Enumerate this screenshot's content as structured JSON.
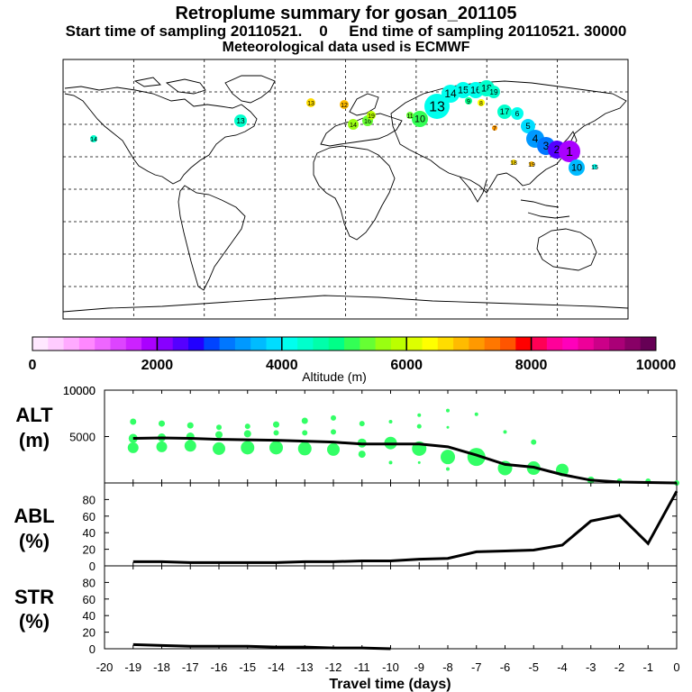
{
  "header": {
    "title": "Retroplume summary for gosan_201105",
    "sampling": "Start time of sampling 20110521.    0     End time of sampling 20110521. 30000",
    "met": "Meteorological data used is ECMWF"
  },
  "colorbar": {
    "label": "Altitude (m)",
    "ticks": [
      "0",
      "2000",
      "4000",
      "6000",
      "8000",
      "10000"
    ],
    "colors": [
      "#ffe8ff",
      "#ffccff",
      "#ffaaff",
      "#ff88ff",
      "#ee66ff",
      "#dd44ff",
      "#cc22ff",
      "#aa00ff",
      "#8800ff",
      "#5500ff",
      "#2200ff",
      "#0044ff",
      "#0077ff",
      "#0099ff",
      "#00bbff",
      "#00ddff",
      "#00ffee",
      "#00ffcc",
      "#00ffaa",
      "#00ff88",
      "#33ff55",
      "#66ff33",
      "#99ff11",
      "#bbff00",
      "#ddff00",
      "#ffff00",
      "#ffdd00",
      "#ffbb00",
      "#ff9900",
      "#ff7700",
      "#ff5500",
      "#ff0000",
      "#ff0055",
      "#ff0099",
      "#ff00bb",
      "#ee0099",
      "#cc0088",
      "#aa0077",
      "#880066",
      "#660055"
    ]
  },
  "map": {
    "markers": [
      {
        "label": "13",
        "color": "#00ffee"
      },
      {
        "label": "14",
        "color": "#00ffee"
      },
      {
        "label": "15",
        "color": "#00ffee"
      },
      {
        "label": "16",
        "color": "#00ffee"
      },
      {
        "label": "18",
        "color": "#00ffcc"
      },
      {
        "label": "19",
        "color": "#00ffcc"
      },
      {
        "label": "10",
        "color": "#33ff55"
      },
      {
        "label": "11",
        "color": "#66ff33"
      },
      {
        "label": "12",
        "color": "#ffbb00"
      },
      {
        "label": "13",
        "color": "#ffdd00"
      },
      {
        "label": "14",
        "color": "#99ff11"
      },
      {
        "label": "16",
        "color": "#66ff33"
      },
      {
        "label": "19",
        "color": "#bbff00"
      },
      {
        "label": "17",
        "color": "#00ffcc"
      },
      {
        "label": "8",
        "color": "#ffff00"
      },
      {
        "label": "7",
        "color": "#ff9900"
      },
      {
        "label": "9",
        "color": "#00ff88"
      },
      {
        "label": "6",
        "color": "#00ffee"
      },
      {
        "label": "5",
        "color": "#00ddff"
      },
      {
        "label": "4",
        "color": "#0099ff"
      },
      {
        "label": "3",
        "color": "#0077ff"
      },
      {
        "label": "2",
        "color": "#5500ff"
      },
      {
        "label": "1",
        "color": "#aa00ff"
      },
      {
        "label": "10",
        "color": "#00bbff"
      },
      {
        "label": "18",
        "color": "#ffdd00"
      },
      {
        "label": "19",
        "color": "#ffbb00"
      },
      {
        "label": "13",
        "color": "#00ffcc"
      },
      {
        "label": "14",
        "color": "#00ffcc"
      },
      {
        "label": "15",
        "color": "#00ffee"
      }
    ]
  },
  "chart_data": [
    {
      "type": "scatter",
      "title": "ALT",
      "ylabel": "(m)",
      "ylim": [
        0,
        10000
      ],
      "yticks": [
        0,
        5000,
        10000
      ],
      "ytick_labels": [
        "",
        "5000",
        "10000"
      ],
      "color": "#33ff66",
      "line": {
        "x": [
          -19,
          -18,
          -17,
          -16,
          -15,
          -14,
          -13,
          -12,
          -11,
          -10,
          -9,
          -8,
          -7,
          -6,
          -5,
          -4,
          -3,
          -2,
          -1,
          0
        ],
        "y": [
          4800,
          4850,
          4800,
          4700,
          4650,
          4600,
          4500,
          4400,
          4200,
          4200,
          4200,
          3900,
          3000,
          2000,
          1700,
          900,
          300,
          100,
          50,
          0
        ]
      },
      "points": [
        {
          "x": -19,
          "y": 6600,
          "s": 3.5
        },
        {
          "x": -19,
          "y": 4800,
          "s": 5
        },
        {
          "x": -19,
          "y": 3800,
          "s": 6
        },
        {
          "x": -18,
          "y": 6400,
          "s": 3.5
        },
        {
          "x": -18,
          "y": 4900,
          "s": 4.5
        },
        {
          "x": -18,
          "y": 3900,
          "s": 6
        },
        {
          "x": -17,
          "y": 6200,
          "s": 3.5
        },
        {
          "x": -17,
          "y": 5000,
          "s": 4.5
        },
        {
          "x": -17,
          "y": 4000,
          "s": 6.5
        },
        {
          "x": -16,
          "y": 6000,
          "s": 3
        },
        {
          "x": -16,
          "y": 5200,
          "s": 4
        },
        {
          "x": -16,
          "y": 3700,
          "s": 7
        },
        {
          "x": -15,
          "y": 6100,
          "s": 3
        },
        {
          "x": -15,
          "y": 5300,
          "s": 4
        },
        {
          "x": -15,
          "y": 3800,
          "s": 7.5
        },
        {
          "x": -14,
          "y": 6300,
          "s": 3.5
        },
        {
          "x": -14,
          "y": 5400,
          "s": 3
        },
        {
          "x": -14,
          "y": 3800,
          "s": 7.5
        },
        {
          "x": -13,
          "y": 6700,
          "s": 3.5
        },
        {
          "x": -13,
          "y": 5400,
          "s": 3
        },
        {
          "x": -13,
          "y": 3700,
          "s": 7.5
        },
        {
          "x": -12,
          "y": 7000,
          "s": 3
        },
        {
          "x": -12,
          "y": 5500,
          "s": 3
        },
        {
          "x": -12,
          "y": 3600,
          "s": 7
        },
        {
          "x": -11,
          "y": 6400,
          "s": 3
        },
        {
          "x": -11,
          "y": 4300,
          "s": 5
        },
        {
          "x": -11,
          "y": 3100,
          "s": 4
        },
        {
          "x": -10,
          "y": 6600,
          "s": 2
        },
        {
          "x": -10,
          "y": 4300,
          "s": 7
        },
        {
          "x": -10,
          "y": 2200,
          "s": 2
        },
        {
          "x": -9,
          "y": 7300,
          "s": 2
        },
        {
          "x": -9,
          "y": 6100,
          "s": 2.5
        },
        {
          "x": -9,
          "y": 3700,
          "s": 8
        },
        {
          "x": -9,
          "y": 2200,
          "s": 1.5
        },
        {
          "x": -8,
          "y": 7800,
          "s": 2
        },
        {
          "x": -8,
          "y": 6000,
          "s": 1.5
        },
        {
          "x": -8,
          "y": 2800,
          "s": 8
        },
        {
          "x": -8,
          "y": 1500,
          "s": 2
        },
        {
          "x": -7,
          "y": 7400,
          "s": 2
        },
        {
          "x": -7,
          "y": 2800,
          "s": 10
        },
        {
          "x": -6,
          "y": 5500,
          "s": 2
        },
        {
          "x": -6,
          "y": 1600,
          "s": 8
        },
        {
          "x": -5,
          "y": 4400,
          "s": 3
        },
        {
          "x": -5,
          "y": 1600,
          "s": 7.5
        },
        {
          "x": -4,
          "y": 1400,
          "s": 7
        },
        {
          "x": -3,
          "y": 300,
          "s": 4
        },
        {
          "x": -2,
          "y": 200,
          "s": 3
        },
        {
          "x": -1,
          "y": 200,
          "s": 3
        },
        {
          "x": 0,
          "y": 0,
          "s": 3
        }
      ]
    },
    {
      "type": "line",
      "title": "ABL",
      "ylabel": "(%)",
      "ylim": [
        0,
        100
      ],
      "yticks": [
        0,
        20,
        40,
        60,
        80
      ],
      "ytick_labels": [
        "0",
        "20",
        "40",
        "60",
        "80"
      ],
      "x": [
        -19,
        -18,
        -17,
        -16,
        -15,
        -14,
        -13,
        -12,
        -11,
        -10,
        -9,
        -8,
        -7,
        -6,
        -5,
        -4,
        -3,
        -2,
        -1,
        0
      ],
      "y": [
        5,
        5,
        4,
        4,
        4,
        4,
        5,
        5,
        6,
        6,
        8,
        9,
        17,
        18,
        19,
        25,
        54,
        61,
        27,
        90
      ]
    },
    {
      "type": "line",
      "title": "STR",
      "ylabel": "(%)",
      "ylim": [
        0,
        100
      ],
      "yticks": [
        0,
        20,
        40,
        60,
        80
      ],
      "ytick_labels": [
        "0",
        "20",
        "40",
        "60",
        "80"
      ],
      "x": [
        -19,
        -18,
        -17,
        -16,
        -15,
        -14,
        -13,
        -12,
        -11,
        -10
      ],
      "y": [
        5,
        4,
        3,
        3,
        3,
        2,
        2,
        1,
        1,
        0
      ]
    }
  ],
  "xaxis": {
    "label": "Travel time (days)",
    "ticks": [
      "-20",
      "-19",
      "-18",
      "-17",
      "-16",
      "-15",
      "-14",
      "-13",
      "-12",
      "-11",
      "-10",
      "-9",
      "-8",
      "-7",
      "-6",
      "-5",
      "-4",
      "-3",
      "-2",
      "-1",
      "0"
    ]
  }
}
